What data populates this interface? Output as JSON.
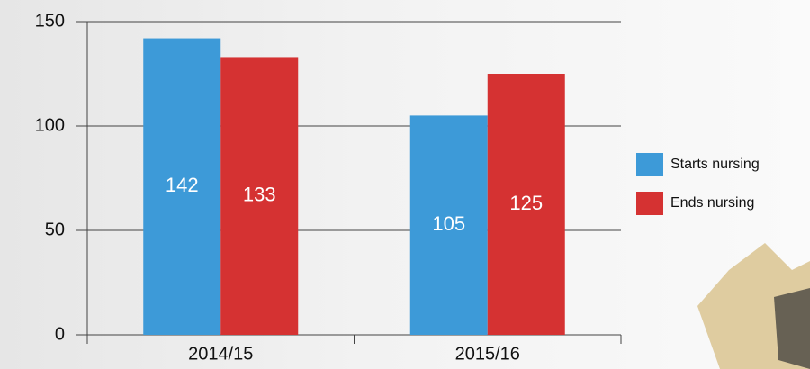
{
  "chart_data": {
    "type": "bar",
    "categories": [
      "2014/15",
      "2015/16"
    ],
    "series": [
      {
        "name": "Starts nursing",
        "color": "#3d9ad8",
        "values": [
          142,
          105
        ]
      },
      {
        "name": "Ends nursing",
        "color": "#d53232",
        "values": [
          133,
          125
        ]
      }
    ],
    "ylim": [
      0,
      150
    ],
    "yticks": [
      0,
      50,
      100,
      150
    ],
    "grid": true,
    "legend": "right"
  }
}
